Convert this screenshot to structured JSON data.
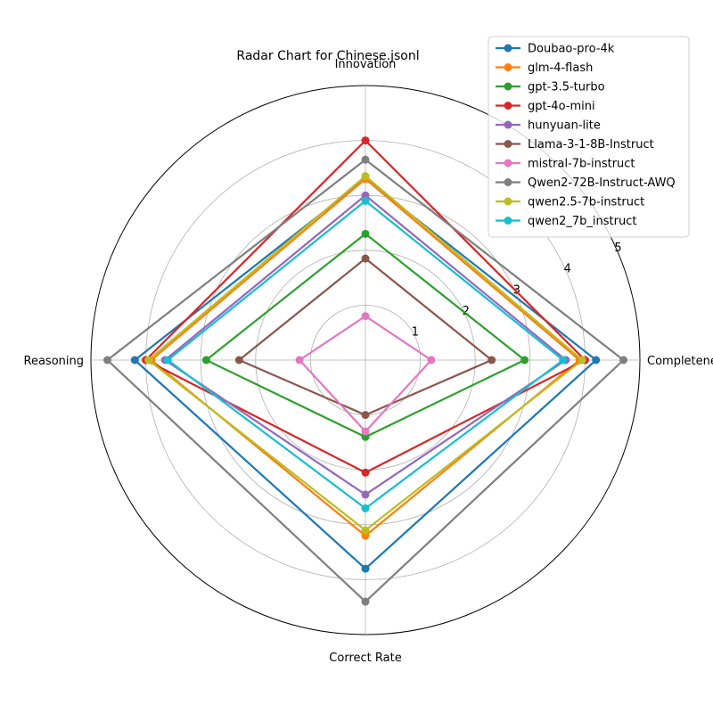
{
  "chart_data": {
    "type": "radar",
    "title": "Radar Chart for Chinese.jsonl",
    "axes": [
      "Innovation",
      "Completeness",
      "Correct Rate",
      "Reasoning"
    ],
    "rlim": [
      0,
      5
    ],
    "rticks": [
      1,
      2,
      3,
      4,
      5
    ],
    "grid": true,
    "legend_position": "top-right",
    "series": [
      {
        "name": "Doubao-pro-4k",
        "color": "#1f77b4",
        "values": [
          3.3,
          4.2,
          3.8,
          4.2
        ]
      },
      {
        "name": "glm-4-flash",
        "color": "#ff7f0e",
        "values": [
          3.3,
          3.9,
          3.2,
          3.9
        ]
      },
      {
        "name": "gpt-3.5-turbo",
        "color": "#2ca02c",
        "values": [
          2.3,
          2.9,
          1.4,
          2.9
        ]
      },
      {
        "name": "gpt-4o-mini",
        "color": "#d62728",
        "values": [
          4.0,
          4.0,
          2.05,
          4.0
        ]
      },
      {
        "name": "hunyuan-lite",
        "color": "#9467bd",
        "values": [
          3.0,
          3.65,
          2.45,
          3.65
        ]
      },
      {
        "name": "Llama-3-1-8B-Instruct",
        "color": "#8c564b",
        "values": [
          1.85,
          2.3,
          1.0,
          2.3
        ]
      },
      {
        "name": "mistral-7b-instruct",
        "color": "#e377c2",
        "values": [
          0.8,
          1.2,
          1.3,
          1.2
        ]
      },
      {
        "name": "Qwen2-72B-Instruct-AWQ",
        "color": "#7f7f7f",
        "values": [
          3.65,
          4.7,
          4.4,
          4.7
        ]
      },
      {
        "name": "qwen2.5-7b-instruct",
        "color": "#bcbd22",
        "values": [
          3.35,
          3.95,
          3.1,
          3.95
        ]
      },
      {
        "name": "qwen2_7b_instruct",
        "color": "#17becf",
        "values": [
          2.9,
          3.6,
          2.7,
          3.6
        ]
      }
    ]
  }
}
